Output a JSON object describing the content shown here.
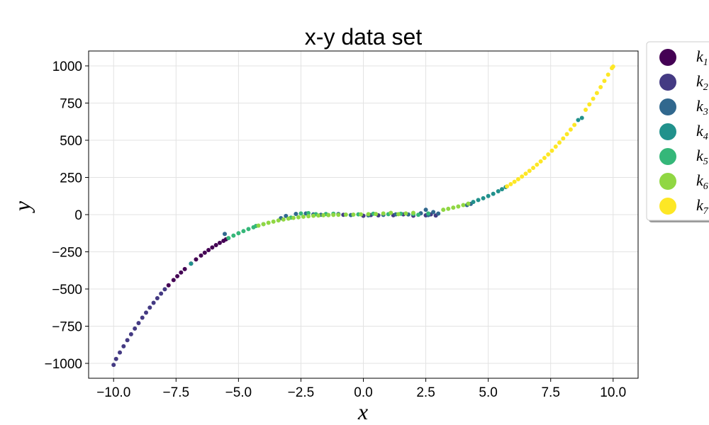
{
  "chart_data": {
    "type": "scatter",
    "title": "x-y data set",
    "xlabel": "x",
    "ylabel": "y",
    "xlim": [
      -11,
      11
    ],
    "ylim": [
      -1100,
      1100
    ],
    "xticks": [
      -10,
      -7.5,
      -5,
      -2.5,
      0,
      2.5,
      5,
      7.5,
      10
    ],
    "xtick_labels": [
      "−10.0",
      "−7.5",
      "−5.0",
      "−2.5",
      "0.0",
      "2.5",
      "5.0",
      "7.5",
      "10.0"
    ],
    "yticks": [
      -1000,
      -750,
      -500,
      -250,
      0,
      250,
      500,
      750,
      1000
    ],
    "ytick_labels": [
      "−1000",
      "−750",
      "−500",
      "−250",
      "0",
      "250",
      "500",
      "750",
      "1000"
    ],
    "grid": true,
    "legend_position": "outside-top-right",
    "series": [
      {
        "name": "k1",
        "label_base": "k",
        "label_sub": "1",
        "color": "#440154",
        "points": [
          [
            -7.8,
            -475
          ],
          [
            -7.6,
            -440
          ],
          [
            -7.45,
            -414
          ],
          [
            -7.3,
            -389
          ],
          [
            -7.15,
            -366
          ],
          [
            -6.9,
            -329
          ],
          [
            -6.7,
            -301
          ],
          [
            -6.5,
            -275
          ],
          [
            -6.35,
            -256
          ],
          [
            -6.2,
            -238
          ],
          [
            -6.05,
            -221
          ],
          [
            -5.9,
            -205
          ],
          [
            -5.75,
            -190
          ],
          [
            -5.6,
            -176
          ],
          [
            -5.5,
            -166
          ]
        ]
      },
      {
        "name": "k2",
        "label_base": "k",
        "label_sub": "2",
        "color": "#443a83",
        "points": [
          [
            -10.0,
            -1010
          ],
          [
            -9.9,
            -970
          ],
          [
            -9.75,
            -927
          ],
          [
            -9.6,
            -885
          ],
          [
            -9.45,
            -844
          ],
          [
            -9.3,
            -804
          ],
          [
            -9.15,
            -766
          ],
          [
            -9.0,
            -729
          ],
          [
            -8.85,
            -693
          ],
          [
            -8.7,
            -659
          ],
          [
            -8.55,
            -625
          ],
          [
            -8.4,
            -593
          ],
          [
            -8.25,
            -562
          ],
          [
            -8.1,
            -531
          ],
          [
            -7.95,
            -502
          ],
          [
            -1.4,
            -3
          ],
          [
            -0.8,
            -1
          ],
          [
            0.0,
            -8
          ],
          [
            0.3,
            -3
          ],
          [
            0.6,
            -5
          ],
          [
            1.2,
            -4
          ],
          [
            1.6,
            2
          ],
          [
            2.0,
            -7
          ],
          [
            2.5,
            -5
          ],
          [
            2.7,
            2
          ],
          [
            2.9,
            -6
          ]
        ]
      },
      {
        "name": "k3",
        "label_base": "k",
        "label_sub": "3",
        "color": "#31688e",
        "points": [
          [
            -5.55,
            -130
          ],
          [
            -3.3,
            -24
          ],
          [
            -3.1,
            -9
          ],
          [
            -2.7,
            5
          ],
          [
            -2.3,
            8
          ],
          [
            -2.0,
            2
          ],
          [
            -1.7,
            -1
          ],
          [
            -1.0,
            4
          ],
          [
            -0.5,
            -3
          ],
          [
            0.2,
            -5
          ],
          [
            0.8,
            -2
          ],
          [
            1.3,
            2
          ],
          [
            1.8,
            1
          ],
          [
            2.3,
            9
          ],
          [
            2.5,
            33
          ],
          [
            2.6,
            -3
          ],
          [
            2.8,
            17
          ],
          [
            3.0,
            7
          ],
          [
            4.15,
            64
          ],
          [
            4.3,
            72
          ]
        ]
      },
      {
        "name": "k4",
        "label_base": "k",
        "label_sub": "4",
        "color": "#21918c",
        "points": [
          [
            -6.9,
            -330
          ],
          [
            -4.0,
            -64
          ],
          [
            4.4,
            85
          ],
          [
            4.6,
            98
          ],
          [
            4.8,
            110
          ],
          [
            5.0,
            125
          ],
          [
            5.2,
            140
          ],
          [
            5.4,
            157
          ],
          [
            5.55,
            171
          ],
          [
            5.7,
            185
          ],
          [
            8.6,
            636
          ],
          [
            8.75,
            650
          ]
        ]
      },
      {
        "name": "k5",
        "label_base": "k",
        "label_sub": "5",
        "color": "#35b779",
        "points": [
          [
            -5.4,
            -158
          ],
          [
            -5.2,
            -141
          ],
          [
            -5.0,
            -125
          ],
          [
            -4.8,
            -111
          ],
          [
            -4.6,
            -97
          ],
          [
            -4.4,
            -85
          ],
          [
            -4.3,
            -76
          ],
          [
            -2.9,
            -20
          ],
          [
            -2.5,
            8
          ],
          [
            -2.2,
            10
          ],
          [
            -1.9,
            3
          ],
          [
            -1.5,
            4
          ],
          [
            -1.2,
            6
          ],
          [
            -0.2,
            2
          ],
          [
            0.4,
            6
          ],
          [
            1.0,
            3
          ],
          [
            1.5,
            6
          ],
          [
            2.0,
            4
          ],
          [
            2.2,
            -1
          ],
          [
            2.6,
            8
          ]
        ]
      },
      {
        "name": "k6",
        "label_base": "k",
        "label_sub": "6",
        "color": "#90d743",
        "points": [
          [
            -4.2,
            -74
          ],
          [
            -4.0,
            -64
          ],
          [
            -3.8,
            -55
          ],
          [
            -3.6,
            -47
          ],
          [
            -3.4,
            -39
          ],
          [
            -3.2,
            -33
          ],
          [
            -3.0,
            -27
          ],
          [
            -2.8,
            -22
          ],
          [
            -2.6,
            -18
          ],
          [
            -2.4,
            -14
          ],
          [
            -2.2,
            -11
          ],
          [
            -2.0,
            -8
          ],
          [
            -1.8,
            -6
          ],
          [
            -1.6,
            -4
          ],
          [
            -1.4,
            -3
          ],
          [
            -1.2,
            -2
          ],
          [
            -1.0,
            -1
          ],
          [
            -0.7,
            0
          ],
          [
            -0.4,
            0
          ],
          [
            -0.1,
            2
          ],
          [
            0.2,
            3
          ],
          [
            0.5,
            4
          ],
          [
            0.8,
            8
          ],
          [
            1.1,
            12
          ],
          [
            1.4,
            3
          ],
          [
            1.7,
            8
          ],
          [
            2.0,
            12
          ],
          [
            3.2,
            33
          ],
          [
            3.4,
            39
          ],
          [
            3.6,
            47
          ],
          [
            3.8,
            55
          ],
          [
            4.0,
            64
          ],
          [
            4.2,
            74
          ]
        ]
      },
      {
        "name": "k7",
        "label_base": "k",
        "label_sub": "7",
        "color": "#fde725",
        "points": [
          [
            5.75,
            190
          ],
          [
            5.9,
            205
          ],
          [
            6.05,
            221
          ],
          [
            6.2,
            238
          ],
          [
            6.35,
            256
          ],
          [
            6.5,
            275
          ],
          [
            6.65,
            294
          ],
          [
            6.8,
            314
          ],
          [
            6.95,
            336
          ],
          [
            7.1,
            358
          ],
          [
            7.25,
            381
          ],
          [
            7.4,
            405
          ],
          [
            7.55,
            430
          ],
          [
            7.7,
            457
          ],
          [
            7.85,
            484
          ],
          [
            8.0,
            512
          ],
          [
            8.15,
            541
          ],
          [
            8.3,
            572
          ],
          [
            8.45,
            603
          ],
          [
            8.9,
            705
          ],
          [
            9.05,
            741
          ],
          [
            9.2,
            779
          ],
          [
            9.35,
            817
          ],
          [
            9.5,
            857
          ],
          [
            9.65,
            899
          ],
          [
            9.8,
            941
          ],
          [
            9.95,
            985
          ],
          [
            10.0,
            995
          ]
        ]
      }
    ]
  }
}
